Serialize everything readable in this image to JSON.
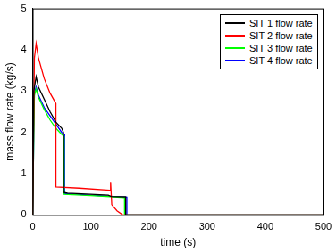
{
  "chart_data": {
    "type": "line",
    "x_label": "time (s)",
    "y_label": "mass flow rate (kg/s)",
    "xlim": [
      0,
      500
    ],
    "xticks": [
      0,
      100,
      200,
      300,
      400,
      500
    ],
    "ylim": [
      0,
      5
    ],
    "yticks": [
      0,
      1,
      2,
      3,
      4,
      5
    ],
    "grid": false,
    "legend": "upper right",
    "series": [
      {
        "name": "SIT 1 flow rate",
        "color": "#000000",
        "x": [
          0,
          2,
          6,
          10,
          20,
          30,
          40,
          50,
          53,
          53,
          60,
          100,
          130,
          135,
          160,
          160,
          500
        ],
        "values": [
          0,
          3.0,
          3.35,
          3.1,
          2.8,
          2.5,
          2.25,
          2.1,
          2.0,
          0.55,
          0.53,
          0.5,
          0.48,
          0.45,
          0.44,
          0,
          0
        ]
      },
      {
        "name": "SIT 2 flow rate",
        "color": "#ff0000",
        "x": [
          0,
          3,
          6,
          10,
          20,
          30,
          38,
          40,
          40,
          80,
          133,
          134,
          136,
          145,
          155,
          500
        ],
        "values": [
          0,
          3.8,
          4.15,
          3.8,
          3.3,
          2.95,
          2.75,
          2.7,
          0.68,
          0.65,
          0.6,
          0.8,
          0.25,
          0.1,
          0,
          0
        ]
      },
      {
        "name": "SIT 3 flow rate",
        "color": "#00ff00",
        "x": [
          0,
          3,
          6,
          10,
          20,
          30,
          40,
          50,
          54,
          54,
          100,
          140,
          158,
          158,
          500
        ],
        "values": [
          0,
          2.9,
          3.05,
          2.85,
          2.55,
          2.3,
          2.1,
          1.95,
          1.9,
          0.5,
          0.47,
          0.44,
          0.42,
          0,
          0
        ]
      },
      {
        "name": "SIT 4 flow rate",
        "color": "#0000ff",
        "x": [
          0,
          3,
          6,
          10,
          20,
          30,
          40,
          50,
          55,
          55,
          100,
          140,
          162,
          162,
          500
        ],
        "values": [
          0,
          2.95,
          3.1,
          2.9,
          2.6,
          2.4,
          2.2,
          2.0,
          1.95,
          0.52,
          0.48,
          0.45,
          0.43,
          0,
          0
        ]
      }
    ]
  }
}
